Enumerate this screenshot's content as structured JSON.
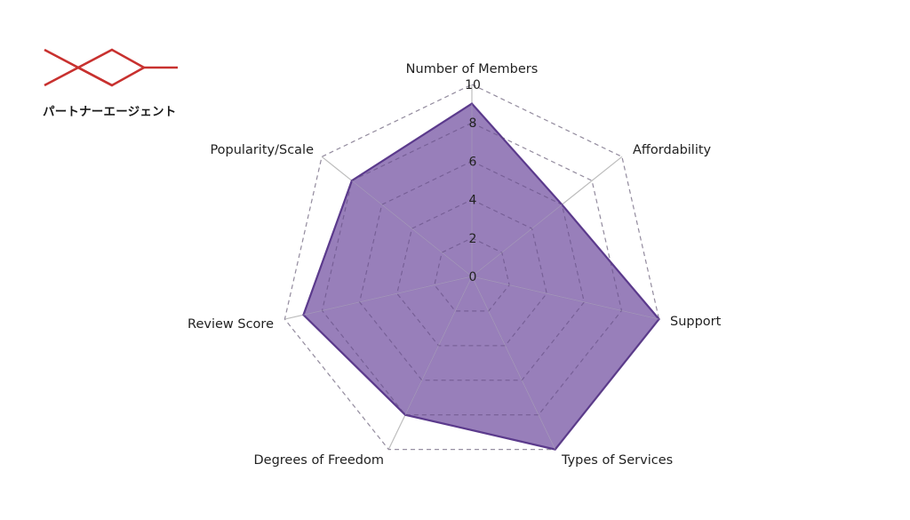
{
  "logo": {
    "text": "パートナーエージェント",
    "color": "#c8312f",
    "icon": "diamond-lines-logo"
  },
  "chart_data": {
    "type": "radar",
    "title": "",
    "axes": [
      "Number of Members",
      "Affordability",
      "Support",
      "Types of Services",
      "Degrees of Freedom",
      "Review Score",
      "Popularity/Scale"
    ],
    "ticks": [
      0,
      2,
      4,
      6,
      8,
      10
    ],
    "rmax": 10,
    "grid": true,
    "series": [
      {
        "values": [
          9,
          6,
          10,
          10,
          8,
          9,
          8
        ],
        "fill": "#7b5ba6",
        "fill_opacity": 0.78,
        "stroke": "#5b3a8c"
      }
    ],
    "grid_color": "#bdbdbd",
    "spoke_color": "#b8b0c8"
  }
}
